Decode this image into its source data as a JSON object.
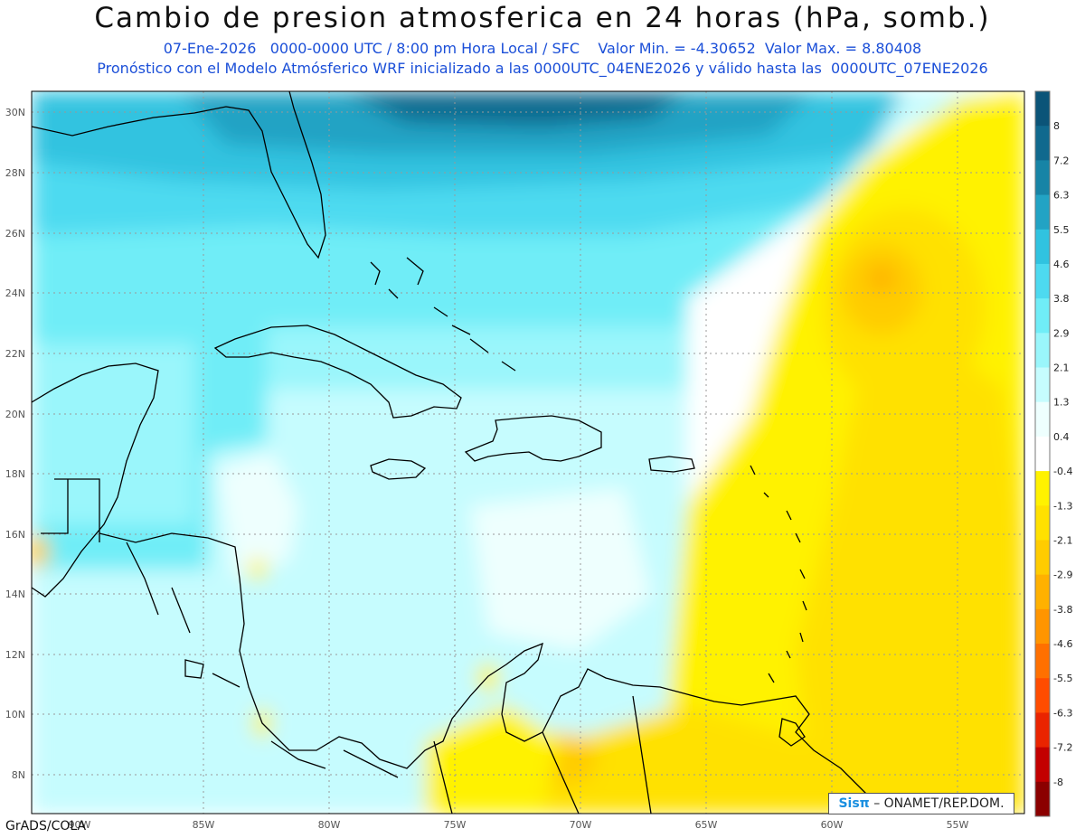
{
  "title": "Cambio de presion atmosferica en 24 horas (hPa, somb.)",
  "subtitle1": "07-Ene-2026   0000-0000 UTC / 8:00 pm Hora Local / SFC    Valor Min. = -4.30652  Valor Max. = 8.80408",
  "subtitle2": "Pronóstico con el Modelo Atmósferico WRF inicializado a las 0000UTC_04ENE2026 y válido hasta las  0000UTC_07ENE2026",
  "map": {
    "lat_labels": [
      "30N",
      "28N",
      "26N",
      "24N",
      "22N",
      "20N",
      "18N",
      "16N",
      "14N",
      "12N",
      "10N",
      "8N"
    ],
    "lon_labels": [
      "85W",
      "80W",
      "75W",
      "70W",
      "65W",
      "60W",
      "55W"
    ],
    "lon_partial_label": "90W",
    "grid": true
  },
  "colorbar": {
    "labels": [
      "8",
      "7.2",
      "6.3",
      "5.5",
      "4.6",
      "3.8",
      "2.9",
      "2.1",
      "1.3",
      "0.4",
      "-0.4",
      "-1.3",
      "-2.1",
      "-2.9",
      "-3.8",
      "-4.6",
      "-5.5",
      "-6.3",
      "-7.2",
      "-8"
    ],
    "colors": [
      "#0b5478",
      "#10698e",
      "#1784a6",
      "#22a3c4",
      "#30c3e0",
      "#4ddaf0",
      "#70edf7",
      "#9af6fb",
      "#c6fcfe",
      "#eefffe",
      "#ffffff",
      "#fff200",
      "#ffe100",
      "#ffcc00",
      "#ffb100",
      "#ff9500",
      "#ff7000",
      "#ff4c00",
      "#ea2400",
      "#c30000",
      "#8b0000"
    ]
  },
  "footer": {
    "software": "GrADS/COLA",
    "credit_brand": "Sisπ",
    "credit_text": " – ONAMET/REP.DOM."
  }
}
